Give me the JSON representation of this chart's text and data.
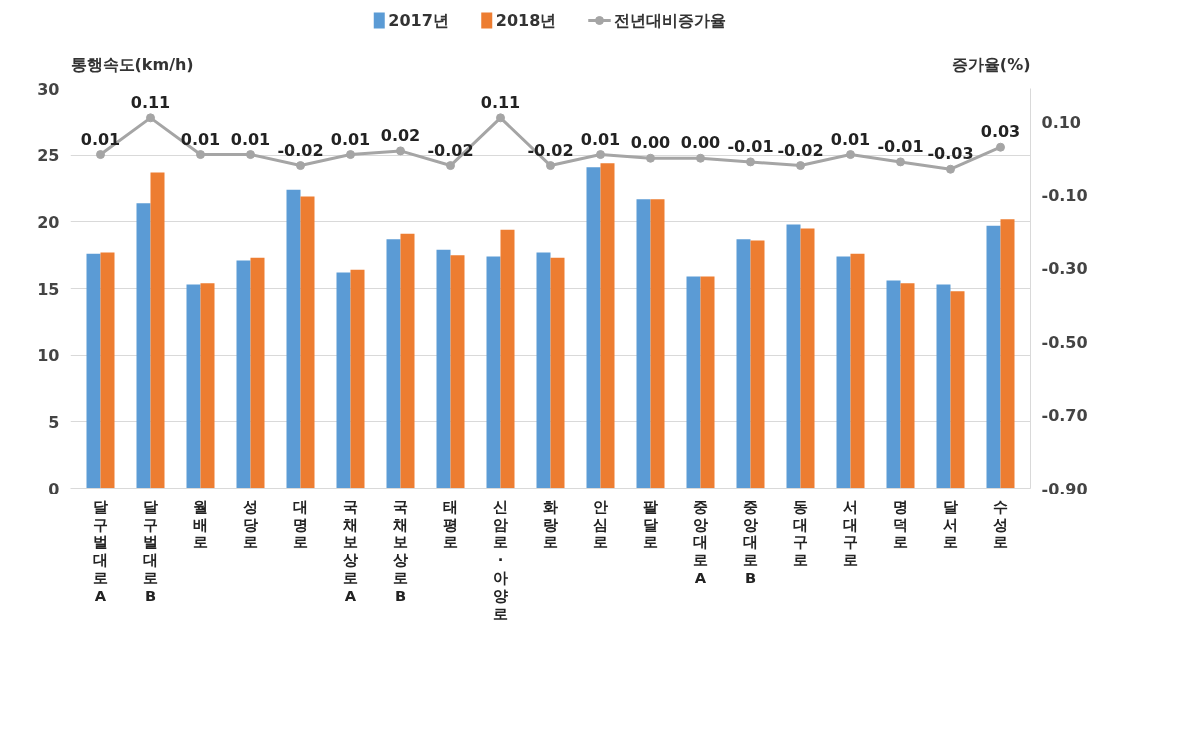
{
  "chart_data": {
    "type": "bar",
    "ylabel": "통행속도(km/h)",
    "y2label": "증가율(%)",
    "categories": [
      "달구벌대로A",
      "달구벌대로B",
      "월배로",
      "성당로",
      "대명로",
      "국채보상로A",
      "국채보상로B",
      "태평로",
      "신암로·아양로",
      "화랑로",
      "안심로",
      "팔달로",
      "중앙대로A",
      "중앙대로B",
      "동대구로",
      "서대구로",
      "명덕로",
      "달서로",
      "수성로"
    ],
    "series": [
      {
        "name": "2017년",
        "color": "#5b9bd5",
        "values": [
          17.6,
          21.4,
          15.3,
          17.1,
          22.4,
          16.2,
          18.7,
          17.9,
          17.4,
          17.7,
          24.1,
          21.7,
          15.9,
          18.7,
          19.8,
          17.4,
          15.6,
          15.3,
          19.7
        ]
      },
      {
        "name": "2018년",
        "color": "#ed7d31",
        "values": [
          17.7,
          23.7,
          15.4,
          17.3,
          21.9,
          16.4,
          19.1,
          17.5,
          19.4,
          17.3,
          24.4,
          21.7,
          15.9,
          18.6,
          19.5,
          17.6,
          15.4,
          14.8,
          20.2
        ]
      },
      {
        "name": "전년대비증가율",
        "type": "line",
        "axis": "y2",
        "color": "#a5a5a5",
        "marker": "circle",
        "line_style": "solid",
        "values": [
          0.01,
          0.11,
          0.01,
          0.01,
          -0.02,
          0.01,
          0.02,
          -0.02,
          0.11,
          -0.02,
          0.01,
          0.0,
          0.0,
          -0.01,
          -0.02,
          0.01,
          -0.01,
          -0.03,
          0.03
        ],
        "value_labels": [
          "0.01",
          "0.11",
          "0.01",
          "0.01",
          "-0.02",
          "0.01",
          "0.02",
          "-0.02",
          "0.11",
          "-0.02",
          "0.01",
          "0.00",
          "0.00",
          "-0.01",
          "-0.02",
          "0.01",
          "-0.01",
          "-0.03",
          "0.03"
        ]
      }
    ],
    "ylim": [
      0,
      30
    ],
    "yticks": [
      0,
      5,
      10,
      15,
      20,
      25,
      30
    ],
    "y2lim": [
      -0.9,
      0.19
    ],
    "y2ticks": [
      {
        "value": 0.1,
        "label": "0.10"
      },
      {
        "value": -0.1,
        "label": "-0.10"
      },
      {
        "value": -0.3,
        "label": "-0.30"
      },
      {
        "value": -0.5,
        "label": "-0.50"
      },
      {
        "value": -0.7,
        "label": "-0.70"
      },
      {
        "value": -0.9,
        "label": "-0.90"
      }
    ],
    "grid": "y",
    "legend": "top"
  }
}
